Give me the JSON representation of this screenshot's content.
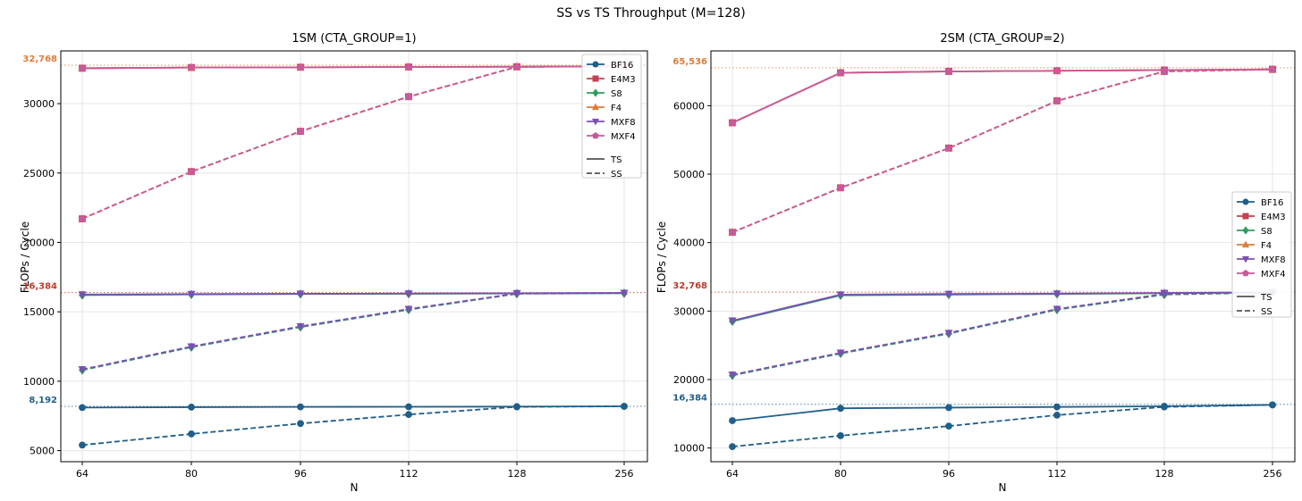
{
  "figure": {
    "title": "SS vs TS Throughput (M=128)"
  },
  "chart_data": [
    {
      "type": "line",
      "title": "1SM (CTA_GROUP=1)",
      "xlabel": "N",
      "ylabel": "FLOPs / Cycle",
      "x_ticks": [
        "64",
        "80",
        "96",
        "112",
        "128",
        "256"
      ],
      "ylim": [
        4200,
        33800
      ],
      "y_ticks": [
        5000,
        10000,
        15000,
        20000,
        25000,
        30000
      ],
      "grid": true,
      "legend_position": "top-right",
      "reference_lines": [
        {
          "value": 32768,
          "label": "32,768",
          "color": "#e07b39"
        },
        {
          "value": 16384,
          "label": "16,384",
          "color": "#c0392b"
        },
        {
          "value": 8192,
          "label": "8,192",
          "color": "#1f5f8b"
        }
      ],
      "legend_styles": [
        {
          "label": "TS",
          "dash": "solid"
        },
        {
          "label": "SS",
          "dash": "dashed"
        }
      ],
      "series": [
        {
          "name": "BF16",
          "color": "#1f5f8b",
          "marker": "circle",
          "ts": [
            8100,
            8130,
            8150,
            8155,
            8170,
            8190
          ],
          "ss": [
            5400,
            6200,
            6950,
            7600,
            8150,
            8190
          ]
        },
        {
          "name": "E4M3",
          "color": "#c94050",
          "marker": "square",
          "ts": [
            32550,
            32600,
            32620,
            32640,
            32660,
            32680
          ],
          "ss": [
            21700,
            25100,
            28000,
            30500,
            32650,
            32700
          ]
        },
        {
          "name": "S8",
          "color": "#2e9e5e",
          "marker": "diamond",
          "ts": [
            16200,
            16250,
            16280,
            16300,
            16320,
            16340
          ],
          "ss": [
            10800,
            12450,
            13900,
            15150,
            16300,
            16340
          ]
        },
        {
          "name": "F4",
          "color": "#e07b39",
          "marker": "triangle-up",
          "ts": [
            32550,
            32600,
            32620,
            32640,
            32660,
            32680
          ],
          "ss": [
            21700,
            25100,
            28000,
            30500,
            32650,
            32700
          ]
        },
        {
          "name": "MXF8",
          "color": "#7b4fb5",
          "marker": "triangle-down",
          "ts": [
            16250,
            16280,
            16300,
            16320,
            16340,
            16360
          ],
          "ss": [
            10850,
            12500,
            13950,
            15200,
            16320,
            16360
          ]
        },
        {
          "name": "MXF4",
          "color": "#c85a9b",
          "marker": "pentagon",
          "ts": [
            32550,
            32600,
            32620,
            32640,
            32660,
            32680
          ],
          "ss": [
            21700,
            25100,
            28000,
            30500,
            32650,
            32700
          ]
        }
      ]
    },
    {
      "type": "line",
      "title": "2SM (CTA_GROUP=2)",
      "xlabel": "N",
      "ylabel": "FLOPs / Cycle",
      "x_ticks": [
        "64",
        "80",
        "96",
        "112",
        "128",
        "256"
      ],
      "ylim": [
        8000,
        68000
      ],
      "y_ticks": [
        10000,
        20000,
        30000,
        40000,
        50000,
        60000
      ],
      "grid": true,
      "legend_position": "center-right",
      "reference_lines": [
        {
          "value": 65536,
          "label": "65,536",
          "color": "#e07b39"
        },
        {
          "value": 32768,
          "label": "32,768",
          "color": "#c0392b"
        },
        {
          "value": 16384,
          "label": "16,384",
          "color": "#1f5f8b"
        }
      ],
      "legend_styles": [
        {
          "label": "TS",
          "dash": "solid"
        },
        {
          "label": "SS",
          "dash": "dashed"
        }
      ],
      "series": [
        {
          "name": "BF16",
          "color": "#1f5f8b",
          "marker": "circle",
          "ts": [
            14000,
            15800,
            15900,
            16000,
            16100,
            16300
          ],
          "ss": [
            10200,
            11800,
            13200,
            14800,
            16000,
            16300
          ]
        },
        {
          "name": "E4M3",
          "color": "#c94050",
          "marker": "square",
          "ts": [
            57500,
            64800,
            65000,
            65100,
            65200,
            65300
          ],
          "ss": [
            41500,
            48000,
            53800,
            60700,
            65000,
            65300
          ]
        },
        {
          "name": "S8",
          "color": "#2e9e5e",
          "marker": "diamond",
          "ts": [
            28500,
            32300,
            32400,
            32500,
            32600,
            32700
          ],
          "ss": [
            20600,
            23800,
            26700,
            30200,
            32400,
            32700
          ]
        },
        {
          "name": "F4",
          "color": "#e07b39",
          "marker": "triangle-up",
          "ts": [
            57500,
            64800,
            65000,
            65100,
            65200,
            65300
          ],
          "ss": [
            41500,
            48000,
            53800,
            60700,
            65000,
            65300
          ]
        },
        {
          "name": "MXF8",
          "color": "#7b4fb5",
          "marker": "triangle-down",
          "ts": [
            28600,
            32400,
            32500,
            32550,
            32650,
            32750
          ],
          "ss": [
            20700,
            23900,
            26800,
            30300,
            32500,
            32750
          ]
        },
        {
          "name": "MXF4",
          "color": "#c85a9b",
          "marker": "pentagon",
          "ts": [
            57500,
            64800,
            65000,
            65100,
            65200,
            65300
          ],
          "ss": [
            41500,
            48000,
            53800,
            60700,
            65000,
            65300
          ]
        }
      ]
    }
  ]
}
